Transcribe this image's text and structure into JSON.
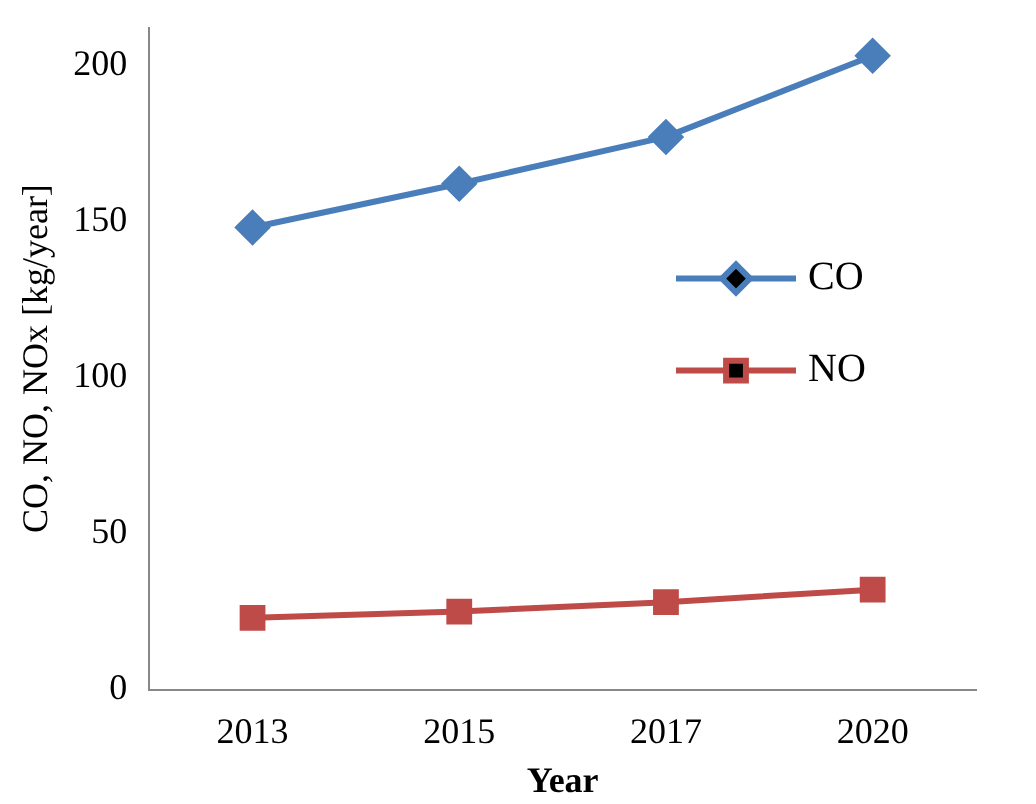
{
  "chart_data": {
    "type": "line",
    "xlabel": "Year",
    "ylabel": "CO, NO, NOx [kg/year]",
    "categories": [
      "2013",
      "2015",
      "2017",
      "2020"
    ],
    "series": [
      {
        "name": "CO",
        "color": "#4a7ebb",
        "marker": "diamond",
        "values": [
          148,
          162,
          177,
          203
        ]
      },
      {
        "name": "NO",
        "color": "#be4b48",
        "marker": "square",
        "values": [
          23,
          25,
          28,
          32
        ]
      }
    ],
    "ylim": [
      0,
      212
    ],
    "yticks": [
      0,
      50,
      100,
      150,
      200
    ],
    "grid": false,
    "legend": "right",
    "line_style": "solid"
  }
}
